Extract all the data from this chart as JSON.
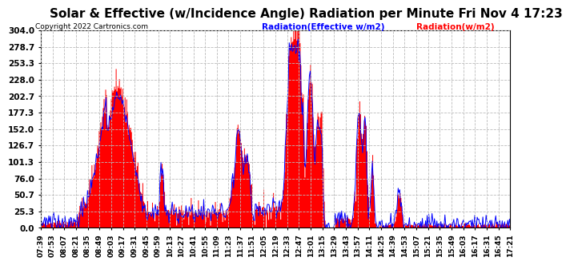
{
  "title": "Solar & Effective (w/Incidence Angle) Radiation per Minute Fri Nov 4 17:23",
  "copyright": "Copyright 2022 Cartronics.com",
  "legend_blue": "Radiation(Effective w/m2)",
  "legend_red": "Radiation(w/m2)",
  "ylabel_values": [
    304.0,
    278.7,
    253.3,
    228.0,
    202.7,
    177.3,
    152.0,
    126.7,
    101.3,
    76.0,
    50.7,
    25.3,
    0.0
  ],
  "ymax": 304.0,
  "ymin": 0.0,
  "bg_color": "#ffffff",
  "plot_bg_color": "#ffffff",
  "grid_color": "#aaaaaa",
  "red_color": "#ff0000",
  "blue_color": "#0000ff",
  "title_fontsize": 11,
  "tick_fontsize": 7.5
}
